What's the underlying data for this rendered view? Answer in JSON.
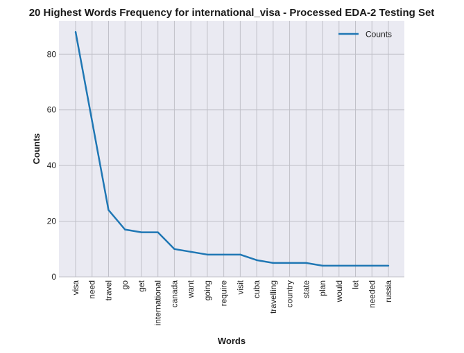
{
  "chart_data": {
    "type": "line",
    "title": "20 Highest Words Frequency for international_visa - Processed EDA-2 Testing Set",
    "xlabel": "Words",
    "ylabel": "Counts",
    "categories": [
      "visa",
      "need",
      "travel",
      "go",
      "get",
      "international",
      "canada",
      "want",
      "going",
      "require",
      "visit",
      "cuba",
      "travelling",
      "country",
      "state",
      "plan",
      "would",
      "let",
      "needed",
      "russia"
    ],
    "series": [
      {
        "name": "Counts",
        "values": [
          88,
          56,
          24,
          17,
          16,
          16,
          10,
          9,
          8,
          8,
          8,
          6,
          5,
          5,
          5,
          4,
          4,
          4,
          4,
          4
        ]
      }
    ],
    "ylim": [
      0,
      92
    ],
    "yticks": [
      0,
      20,
      40,
      60,
      80
    ],
    "grid": true,
    "legend_position": "top-right",
    "colors": {
      "line": "#1f77b4",
      "plot_bg": "#eaeaf2",
      "grid": "#c0c0c8"
    }
  }
}
